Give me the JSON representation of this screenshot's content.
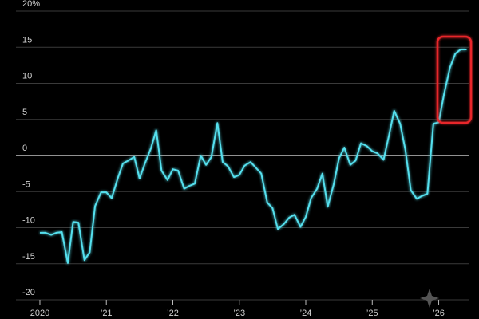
{
  "chart_data": {
    "type": "line",
    "x": [
      2020,
      2020.08,
      2020.17,
      2020.25,
      2020.33,
      2020.42,
      2020.5,
      2020.58,
      2020.67,
      2020.75,
      2020.83,
      2020.92,
      2021,
      2021.08,
      2021.17,
      2021.25,
      2021.33,
      2021.42,
      2021.5,
      2021.58,
      2021.67,
      2021.75,
      2021.83,
      2021.92,
      2022,
      2022.08,
      2022.17,
      2022.25,
      2022.33,
      2022.42,
      2022.5,
      2022.58,
      2022.67,
      2022.75,
      2022.83,
      2022.92,
      2023,
      2023.08,
      2023.17,
      2023.25,
      2023.33,
      2023.42,
      2023.5,
      2023.58,
      2023.67,
      2023.75,
      2023.83,
      2023.92,
      2024,
      2024.08,
      2024.17,
      2024.25,
      2024.33,
      2024.42,
      2024.5,
      2024.58,
      2024.67,
      2024.75,
      2024.83,
      2024.92,
      2025,
      2025.08,
      2025.17,
      2025.25,
      2025.33,
      2025.42,
      2025.5,
      2025.58,
      2025.67,
      2025.75,
      2025.83,
      2025.92,
      2026,
      2026.08,
      2026.17,
      2026.25,
      2026.33,
      2026.42
    ],
    "series": [
      {
        "color": "#55e0ee",
        "values": [
          -10.7,
          -10.7,
          -11,
          -10.7,
          -10.6,
          -14.9,
          -9.2,
          -9.3,
          -14.5,
          -13.4,
          -7,
          -5.1,
          -5.1,
          -5.9,
          -3.2,
          -1.1,
          -0.7,
          -0.2,
          -3.2,
          -1.1,
          1,
          3.5,
          -2.1,
          -3.4,
          -1.9,
          -2.1,
          -4.6,
          -4.2,
          -3.9,
          0,
          -1.3,
          -0.2,
          4.5,
          -0.9,
          -1.5,
          -3,
          -2.7,
          -1.4,
          -0.9,
          -1.7,
          -2.5,
          -6.5,
          -7.3,
          -10.2,
          -9.5,
          -8.6,
          -8.2,
          -9.9,
          -8.5,
          -5.9,
          -4.6,
          -2.5,
          -7.1,
          -4,
          -0.4,
          1.1,
          -1.3,
          -0.7,
          1.7,
          1.3,
          0.6,
          0.3,
          -0.6,
          2.7,
          6.2,
          4.4,
          0.7,
          -4.8,
          -6,
          -5.6,
          -5.3,
          4.4,
          4.6,
          8.5,
          12.2,
          14.1,
          14.7,
          14.7
        ]
      }
    ],
    "xlim": [
      2019.64,
      2026.45
    ],
    "xticks": [
      2020,
      {
        "value": 2021,
        "label": "’21"
      },
      {
        "value": 2022,
        "label": "’22"
      },
      {
        "value": 2023,
        "label": "’23"
      },
      {
        "value": 2024,
        "label": "’24"
      },
      {
        "value": 2025,
        "label": "’25"
      },
      {
        "value": 2026,
        "label": "’26"
      }
    ],
    "ylim": [
      -20,
      20
    ],
    "yticks": [
      {
        "value": 20,
        "label": "20%"
      },
      15,
      10,
      5,
      0,
      -5,
      -10,
      -15,
      -20
    ],
    "grid": true
  }
}
